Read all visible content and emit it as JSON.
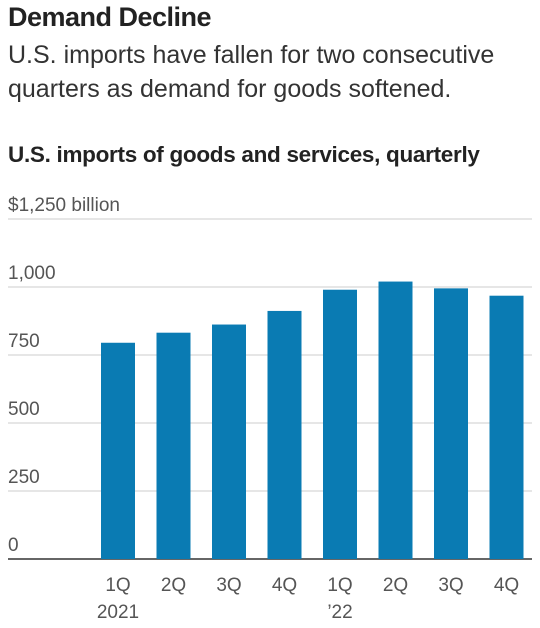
{
  "headline": "Demand Decline",
  "dek": "U.S. imports have fallen for two consecutive quarters as demand for goods softened.",
  "colors": {
    "bar": "#0a7bb3",
    "grid": "#cccccc",
    "axis": "#333333"
  },
  "chart_data": {
    "type": "bar",
    "title": "U.S. imports of goods and services, quarterly",
    "ylabel_top": "$1,250 billion",
    "categories": [
      "1Q",
      "2Q",
      "3Q",
      "4Q",
      "1Q",
      "2Q",
      "3Q",
      "4Q"
    ],
    "years": [
      "2021",
      "",
      "",
      "",
      "’22",
      "",
      "",
      ""
    ],
    "values": [
      795,
      832,
      862,
      912,
      990,
      1020,
      995,
      968
    ],
    "ylim": [
      0,
      1250
    ],
    "yticks": [
      {
        "value": 0,
        "label": "0"
      },
      {
        "value": 250,
        "label": "250"
      },
      {
        "value": 500,
        "label": "500"
      },
      {
        "value": 750,
        "label": "750"
      },
      {
        "value": 1000,
        "label": "1,000"
      },
      {
        "value": 1250,
        "label": "$1,250 billion"
      }
    ],
    "grid": true,
    "legend": "none"
  }
}
